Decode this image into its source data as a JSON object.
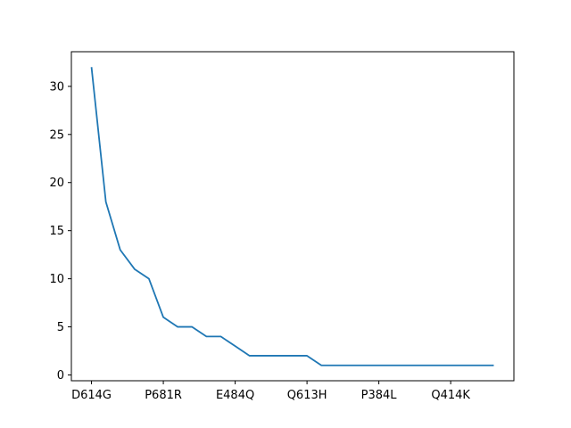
{
  "chart_data": {
    "type": "line",
    "title": "",
    "xlabel": "",
    "ylabel": "",
    "x": [
      0,
      1,
      2,
      3,
      4,
      5,
      6,
      7,
      8,
      9,
      10,
      11,
      12,
      13,
      14,
      15,
      16,
      17,
      18,
      19,
      20,
      21,
      22,
      23,
      24,
      25,
      26,
      27,
      28
    ],
    "x_tick_positions": [
      0,
      5,
      10,
      15,
      20,
      25
    ],
    "x_tick_labels": [
      "D614G",
      "P681R",
      "E484Q",
      "Q613H",
      "P384L",
      "Q414K"
    ],
    "series": [
      {
        "values": [
          32,
          18,
          13,
          11,
          10,
          6,
          5,
          5,
          4,
          4,
          3,
          2,
          2,
          2,
          2,
          2,
          1,
          1,
          1,
          1,
          1,
          1,
          1,
          1,
          1,
          1,
          1,
          1,
          1
        ],
        "color": "#1f77b4"
      }
    ],
    "xlim": [
      -1.4,
      29.4
    ],
    "ylim": [
      -0.6,
      33.6
    ],
    "y_ticks": [
      0,
      5,
      10,
      15,
      20,
      25,
      30
    ],
    "grid": false,
    "legend": "none"
  }
}
